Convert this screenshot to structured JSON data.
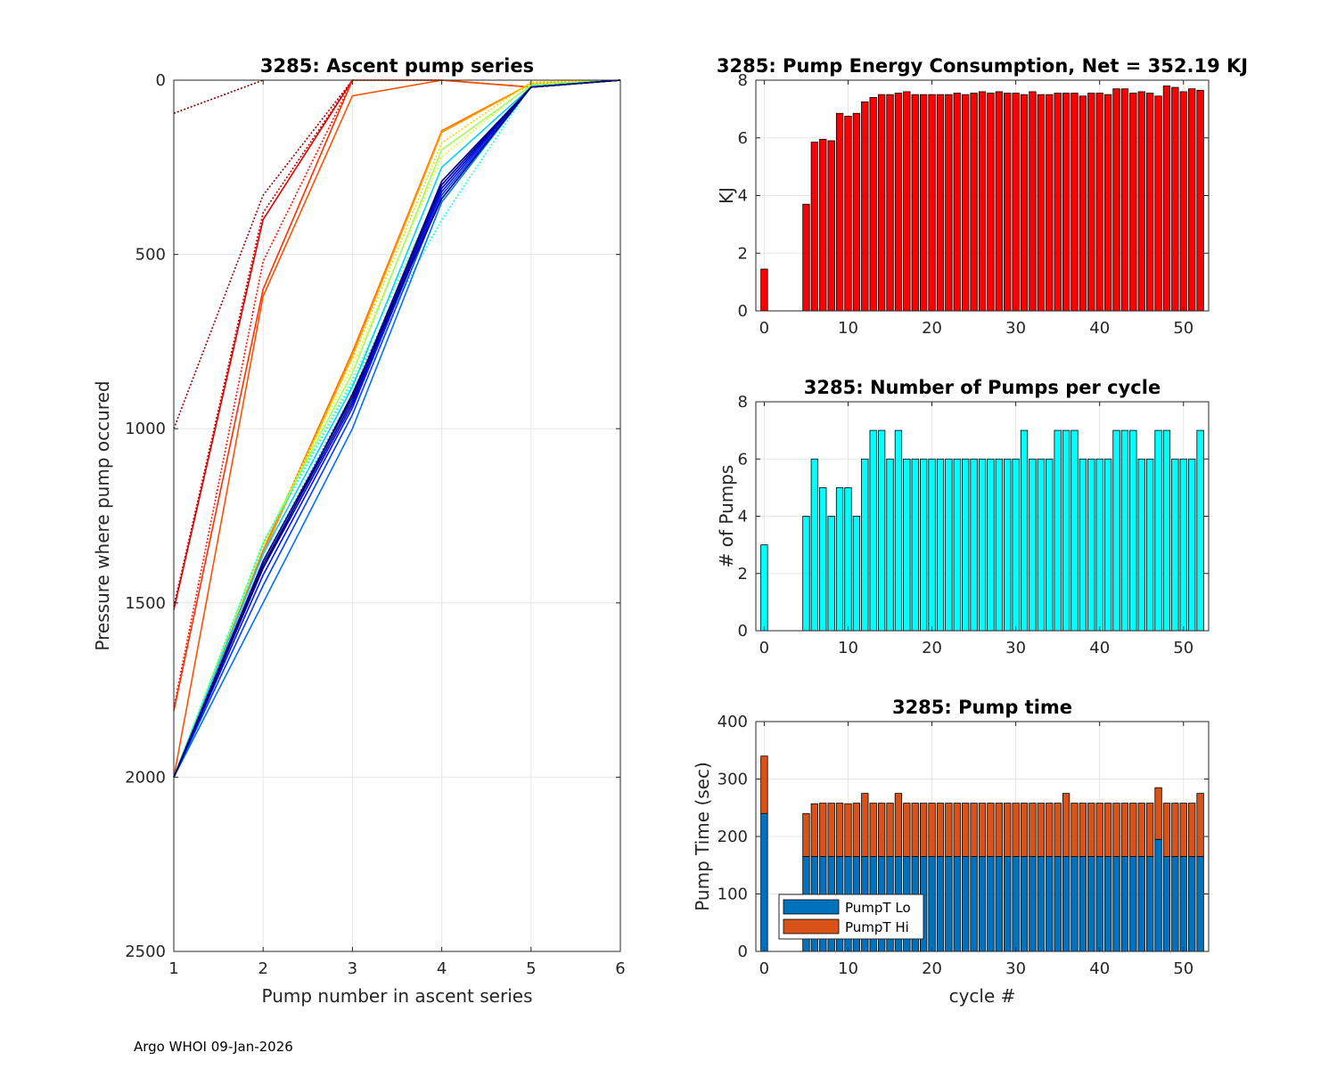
{
  "footer": "Argo WHOI 09-Jan-2026",
  "chart_data": [
    {
      "id": "ascent",
      "type": "line",
      "title": "3285: Ascent pump series",
      "xlabel": "Pump number in ascent series",
      "ylabel": "Pressure where pump occured",
      "xlim": [
        1,
        6
      ],
      "ylim": [
        0,
        2500
      ],
      "y_reversed": true,
      "xticks": [
        1,
        2,
        3,
        4,
        5,
        6
      ],
      "yticks": [
        0,
        500,
        1000,
        1500,
        2000,
        2500
      ],
      "grid": true,
      "colormap": "jet (early cycles red, late cycles dark blue)",
      "series": [
        {
          "name": "cycle 0",
          "color": "#800000",
          "style": "dotted",
          "x": [
            1,
            2
          ],
          "y": [
            95,
            0
          ]
        },
        {
          "name": "cycle 1",
          "color": "#a00000",
          "style": "dotted",
          "x": [
            1,
            2,
            3,
            4
          ],
          "y": [
            1000,
            330,
            0,
            0
          ]
        },
        {
          "name": "cycle 2",
          "color": "#c00000",
          "style": "dotted",
          "x": [
            1,
            2,
            3
          ],
          "y": [
            1510,
            380,
            0
          ]
        },
        {
          "name": "cycle 3",
          "color": "#e00000",
          "style": "solid",
          "x": [
            1,
            2,
            3
          ],
          "y": [
            1520,
            400,
            0
          ]
        },
        {
          "name": "cycle 4",
          "color": "#ff1000",
          "style": "dotted",
          "x": [
            1,
            2,
            3
          ],
          "y": [
            1800,
            520,
            0
          ]
        },
        {
          "name": "cycle 5",
          "color": "#ff3000",
          "style": "solid",
          "x": [
            1,
            2,
            3,
            4,
            5
          ],
          "y": [
            1810,
            600,
            0,
            0,
            20
          ]
        },
        {
          "name": "cycle 6",
          "color": "#ff5000",
          "style": "solid",
          "x": [
            1,
            2,
            3,
            4,
            5
          ],
          "y": [
            2000,
            620,
            45,
            0,
            20
          ]
        },
        {
          "name": "cycle 7",
          "color": "#ff7000",
          "style": "solid",
          "x": [
            1,
            2,
            3,
            4,
            5,
            6
          ],
          "y": [
            2000,
            1350,
            780,
            145,
            10,
            0
          ]
        },
        {
          "name": "cycle 8",
          "color": "#ffa000",
          "style": "solid",
          "x": [
            1,
            2,
            3,
            4,
            5,
            6
          ],
          "y": [
            2000,
            1360,
            790,
            150,
            10,
            0
          ]
        },
        {
          "name": "cycle 9",
          "color": "#ffd000",
          "style": "dotted",
          "x": [
            1,
            2,
            3,
            4,
            5,
            6
          ],
          "y": [
            2000,
            1340,
            800,
            180,
            5,
            0
          ]
        },
        {
          "name": "cycle 10",
          "color": "#e0ff20",
          "style": "dotted",
          "x": [
            1,
            2,
            3,
            4,
            5,
            6
          ],
          "y": [
            2000,
            1330,
            820,
            220,
            10,
            0
          ]
        },
        {
          "name": "cycle 11",
          "color": "#a0ff60",
          "style": "solid",
          "x": [
            1,
            2,
            3,
            4,
            5,
            6
          ],
          "y": [
            2000,
            1330,
            840,
            200,
            15,
            0
          ]
        },
        {
          "name": "cycle 12",
          "color": "#60ffa0",
          "style": "dotted",
          "x": [
            1,
            2,
            3,
            4,
            5,
            6
          ],
          "y": [
            2000,
            1325,
            860,
            300,
            15,
            0
          ]
        },
        {
          "name": "cycle 13",
          "color": "#20ffe0",
          "style": "dotted",
          "x": [
            1,
            2,
            3,
            4,
            5,
            6
          ],
          "y": [
            2000,
            1330,
            870,
            400,
            15,
            0
          ]
        },
        {
          "name": "cycle 14",
          "color": "#00d0ff",
          "style": "solid",
          "x": [
            1,
            2,
            3,
            4,
            5,
            6
          ],
          "y": [
            2000,
            1360,
            880,
            250,
            20,
            0
          ]
        },
        {
          "name": "cycle 15",
          "color": "#00a0ff",
          "style": "dotted",
          "x": [
            1,
            2,
            3,
            4,
            5,
            6
          ],
          "y": [
            2000,
            1380,
            900,
            300,
            20,
            0
          ]
        },
        {
          "name": "cycle 16",
          "color": "#0070ff",
          "style": "solid",
          "x": [
            1,
            2,
            3,
            4,
            5,
            6
          ],
          "y": [
            2000,
            1500,
            1000,
            350,
            20,
            0
          ]
        },
        {
          "name": "cycle 17",
          "color": "#0040ff",
          "style": "solid",
          "x": [
            1,
            2,
            3,
            4,
            5,
            6
          ],
          "y": [
            2000,
            1450,
            960,
            330,
            20,
            0
          ]
        },
        {
          "name": "cycle 18",
          "color": "#0010ff",
          "style": "solid",
          "x": [
            1,
            2,
            3,
            4,
            5,
            6
          ],
          "y": [
            2000,
            1420,
            940,
            320,
            20,
            0
          ]
        },
        {
          "name": "cycle 19",
          "color": "#0000d0",
          "style": "solid",
          "x": [
            1,
            2,
            3,
            4,
            5,
            6
          ],
          "y": [
            2000,
            1400,
            930,
            310,
            20,
            0
          ]
        },
        {
          "name": "cycle 20",
          "color": "#0000a0",
          "style": "solid",
          "x": [
            1,
            2,
            3,
            4,
            5,
            6
          ],
          "y": [
            2000,
            1390,
            920,
            300,
            20,
            0
          ]
        },
        {
          "name": "cycle 21",
          "color": "#000080",
          "style": "solid",
          "x": [
            1,
            2,
            3,
            4,
            5,
            6
          ],
          "y": [
            2000,
            1380,
            910,
            290,
            20,
            0
          ]
        },
        {
          "name": "cycle 22",
          "color": "#000070",
          "style": "solid",
          "x": [
            1,
            2,
            3,
            4,
            5,
            6
          ],
          "y": [
            2000,
            1400,
            900,
            340,
            20,
            0
          ]
        }
      ]
    },
    {
      "id": "energy",
      "type": "bar",
      "title": "3285: Pump Energy Consumption,  Net = 352.19 KJ",
      "xlabel": "",
      "ylabel": "KJ",
      "xlim": [
        -1,
        53
      ],
      "ylim": [
        0,
        8
      ],
      "xticks": [
        0,
        10,
        20,
        30,
        40,
        50
      ],
      "yticks": [
        0,
        2,
        4,
        6,
        8
      ],
      "grid": true,
      "color": "#ff0000",
      "cycles": [
        0,
        5,
        6,
        7,
        8,
        9,
        10,
        11,
        12,
        13,
        14,
        15,
        16,
        17,
        18,
        19,
        20,
        21,
        22,
        23,
        24,
        25,
        26,
        27,
        28,
        29,
        30,
        31,
        32,
        33,
        34,
        35,
        36,
        37,
        38,
        39,
        40,
        41,
        42,
        43,
        44,
        45,
        46,
        47,
        48,
        49,
        50,
        51,
        52
      ],
      "values": [
        1.45,
        3.7,
        5.85,
        5.95,
        5.9,
        6.85,
        6.75,
        6.85,
        7.25,
        7.4,
        7.5,
        7.5,
        7.55,
        7.6,
        7.5,
        7.5,
        7.5,
        7.5,
        7.5,
        7.55,
        7.5,
        7.55,
        7.6,
        7.55,
        7.6,
        7.55,
        7.55,
        7.5,
        7.6,
        7.5,
        7.5,
        7.55,
        7.55,
        7.55,
        7.45,
        7.55,
        7.55,
        7.5,
        7.7,
        7.7,
        7.55,
        7.6,
        7.55,
        7.45,
        7.8,
        7.75,
        7.6,
        7.7,
        7.65
      ]
    },
    {
      "id": "npumps",
      "type": "bar",
      "title": "3285: Number of Pumps per cycle",
      "xlabel": "",
      "ylabel": "# of Pumps",
      "xlim": [
        -1,
        53
      ],
      "ylim": [
        0,
        8
      ],
      "xticks": [
        0,
        10,
        20,
        30,
        40,
        50
      ],
      "yticks": [
        0,
        2,
        4,
        6,
        8
      ],
      "grid": true,
      "color": "#00ffff",
      "cycles": [
        0,
        5,
        6,
        7,
        8,
        9,
        10,
        11,
        12,
        13,
        14,
        15,
        16,
        17,
        18,
        19,
        20,
        21,
        22,
        23,
        24,
        25,
        26,
        27,
        28,
        29,
        30,
        31,
        32,
        33,
        34,
        35,
        36,
        37,
        38,
        39,
        40,
        41,
        42,
        43,
        44,
        45,
        46,
        47,
        48,
        49,
        50,
        51,
        52
      ],
      "values": [
        3,
        4,
        6,
        5,
        4,
        5,
        5,
        4,
        6,
        7,
        7,
        6,
        7,
        6,
        6,
        6,
        6,
        6,
        6,
        6,
        6,
        6,
        6,
        6,
        6,
        6,
        6,
        7,
        6,
        6,
        6,
        7,
        7,
        7,
        6,
        6,
        6,
        6,
        7,
        7,
        7,
        6,
        6,
        7,
        7,
        6,
        6,
        6,
        7
      ]
    },
    {
      "id": "pumptime",
      "type": "bar",
      "stacked": true,
      "title": "3285: Pump time",
      "xlabel": "cycle #",
      "ylabel": "Pump Time (sec)",
      "xlim": [
        -1,
        53
      ],
      "ylim": [
        0,
        400
      ],
      "xticks": [
        0,
        10,
        20,
        30,
        40,
        50
      ],
      "yticks": [
        0,
        100,
        200,
        300,
        400
      ],
      "grid": true,
      "legend_position": "lower-left",
      "cycles": [
        0,
        5,
        6,
        7,
        8,
        9,
        10,
        11,
        12,
        13,
        14,
        15,
        16,
        17,
        18,
        19,
        20,
        21,
        22,
        23,
        24,
        25,
        26,
        27,
        28,
        29,
        30,
        31,
        32,
        33,
        34,
        35,
        36,
        37,
        38,
        39,
        40,
        41,
        42,
        43,
        44,
        45,
        46,
        47,
        48,
        49,
        50,
        51,
        52
      ],
      "series": [
        {
          "name": "PumpT Lo",
          "color": "#0072bd",
          "values": [
            240,
            165,
            165,
            165,
            165,
            165,
            165,
            165,
            165,
            165,
            165,
            165,
            165,
            165,
            165,
            165,
            165,
            165,
            165,
            165,
            165,
            165,
            165,
            165,
            165,
            165,
            165,
            165,
            165,
            165,
            165,
            165,
            165,
            165,
            165,
            165,
            165,
            165,
            165,
            165,
            165,
            165,
            165,
            195,
            165,
            165,
            165,
            165,
            165
          ]
        },
        {
          "name": "PumpT Hi",
          "color": "#d95319",
          "values": [
            100,
            75,
            92,
            93,
            93,
            93,
            92,
            93,
            110,
            93,
            93,
            93,
            110,
            93,
            93,
            93,
            93,
            93,
            93,
            93,
            93,
            93,
            93,
            93,
            93,
            93,
            93,
            93,
            93,
            93,
            93,
            93,
            110,
            93,
            93,
            93,
            93,
            93,
            93,
            93,
            93,
            93,
            93,
            90,
            93,
            93,
            93,
            93,
            110
          ]
        }
      ]
    }
  ]
}
